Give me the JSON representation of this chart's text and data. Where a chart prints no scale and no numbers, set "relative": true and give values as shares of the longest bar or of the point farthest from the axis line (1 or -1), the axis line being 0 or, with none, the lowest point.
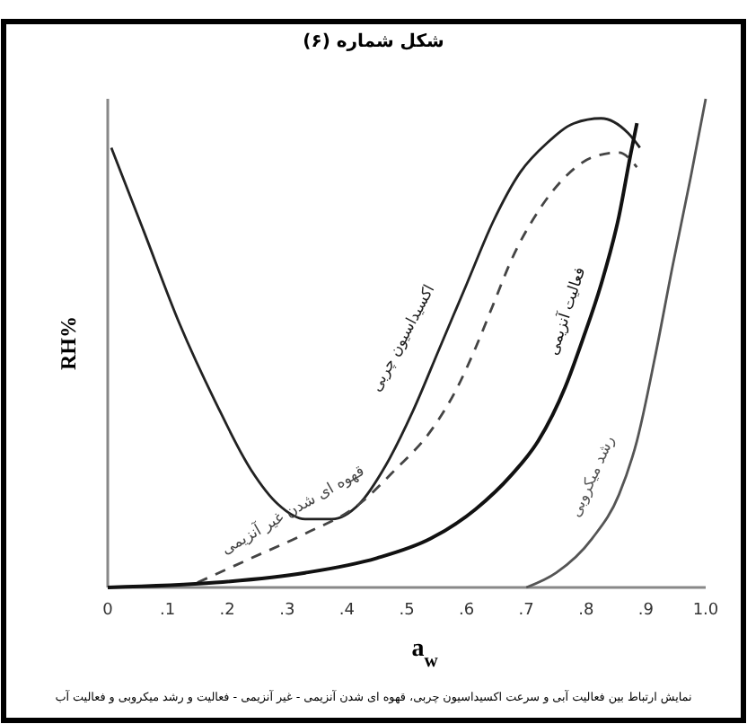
{
  "chart_data": {
    "type": "line",
    "title": "شکل شماره (۶)",
    "xlabel": "a$_{w}$",
    "ylabel": "RH%",
    "relative": true,
    "xlim": [
      0,
      1
    ],
    "xticks": [
      0,
      {
        "value": 0.1,
        "label": ".1"
      },
      {
        "value": 0.2,
        "label": ".2"
      },
      {
        "value": 0.3,
        "label": ".3"
      },
      {
        "value": 0.4,
        "label": ".4"
      },
      {
        "value": 0.5,
        "label": ".5"
      },
      {
        "value": 0.6,
        "label": ".6"
      },
      {
        "value": 0.7,
        "label": ".7"
      },
      {
        "value": 0.8,
        "label": ".8"
      },
      {
        "value": 0.9,
        "label": ".9"
      },
      {
        "value": 1,
        "label": "1.0"
      }
    ],
    "grid": false,
    "marker": "none",
    "series": [
      {
        "name": "اکسیداسیون چربی",
        "color": "#222222",
        "line_style": "solid",
        "x": [
          0.006,
          0.06,
          0.12,
          0.18,
          0.24,
          0.285,
          0.33,
          0.375,
          0.42,
          0.465,
          0.51,
          0.555,
          0.6,
          0.645,
          0.69,
          0.735,
          0.78,
          0.825,
          0.87,
          0.89
        ],
        "values": [
          0.9,
          0.73,
          0.54,
          0.38,
          0.24,
          0.17,
          0.14,
          0.14,
          0.17,
          0.25,
          0.36,
          0.49,
          0.62,
          0.75,
          0.85,
          0.91,
          0.95,
          0.96,
          0.93,
          0.9
        ]
      },
      {
        "name": "قهوه ای شدن غیر آنزیمی",
        "color": "#444444",
        "line_style": "dashed",
        "x": [
          0.15,
          0.24,
          0.33,
          0.42,
          0.48,
          0.54,
          0.585,
          0.615,
          0.645,
          0.675,
          0.72,
          0.765,
          0.81,
          0.855,
          0.885
        ],
        "values": [
          0.01,
          0.06,
          0.11,
          0.17,
          0.24,
          0.32,
          0.41,
          0.49,
          0.58,
          0.67,
          0.77,
          0.84,
          0.88,
          0.89,
          0.86
        ]
      },
      {
        "name": "فعالیت آنزیمی",
        "color": "#111111",
        "line_style": "solid",
        "x": [
          0,
          0.18,
          0.33,
          0.45,
          0.54,
          0.615,
          0.675,
          0.72,
          0.765,
          0.795,
          0.825,
          0.855,
          0.875,
          0.885
        ],
        "values": [
          0,
          0.01,
          0.03,
          0.06,
          0.1,
          0.16,
          0.23,
          0.3,
          0.41,
          0.51,
          0.62,
          0.76,
          0.89,
          0.95
        ]
      },
      {
        "name": "رشد میکروبی",
        "color": "#555555",
        "line_style": "solid",
        "x": [
          0.7,
          0.75,
          0.81,
          0.855,
          0.885,
          0.915,
          0.945,
          0.975,
          1
        ],
        "values": [
          0,
          0.03,
          0.1,
          0.19,
          0.3,
          0.47,
          0.66,
          0.84,
          1
        ]
      }
    ],
    "annotations": [
      "نمایش ارتباط بین فعالیت آبی و سرعت اکسیداسیون چربی، قهوه ای شدن آنزیمی - غیر آنزیمی - فعالیت و رشد میکروبی و فعالیت آب"
    ]
  }
}
